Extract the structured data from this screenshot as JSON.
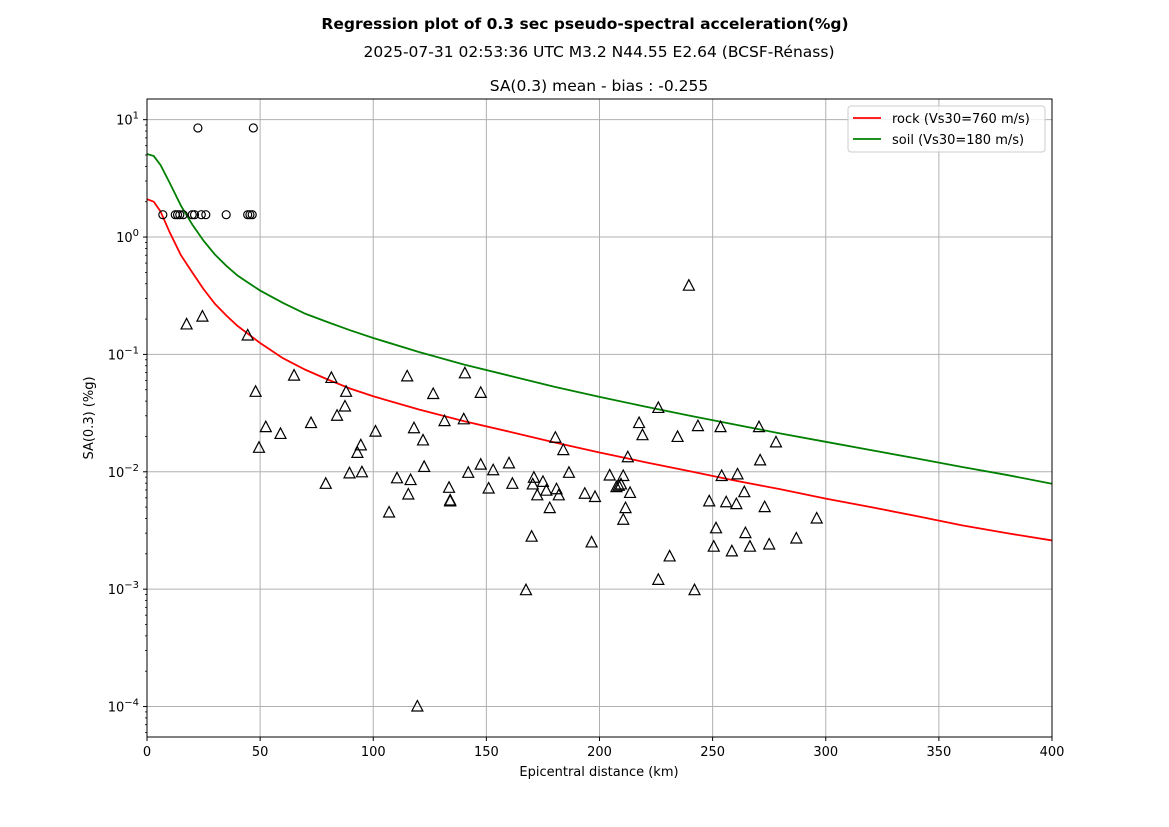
{
  "chart_data": {
    "type": "scatter",
    "title": "Regression plot of 0.3 sec pseudo-spectral acceleration(%g)",
    "subtitle": "2025-07-31 02:53:36 UTC M3.2 N44.55 E2.64 (BCSF-Rénass)",
    "panel_title": "SA(0.3) mean - bias : -0.255",
    "xlabel": "Epicentral distance (km)",
    "ylabel": "SA(0.3) (%g)",
    "xlim": [
      0,
      400
    ],
    "ylim": [
      5.5e-05,
      15
    ],
    "yscale": "log",
    "grid": true,
    "legend_position": "top-right",
    "x_ticks": [
      0,
      50,
      100,
      150,
      200,
      250,
      300,
      350,
      400
    ],
    "y_tick_labels": [
      {
        "value": 0.0001,
        "base": "10",
        "exp": "−4"
      },
      {
        "value": 0.001,
        "base": "10",
        "exp": "−3"
      },
      {
        "value": 0.01,
        "base": "10",
        "exp": "−2"
      },
      {
        "value": 0.1,
        "base": "10",
        "exp": "−1"
      },
      {
        "value": 1,
        "base": "10",
        "exp": "0"
      },
      {
        "value": 10,
        "base": "10",
        "exp": "1"
      }
    ],
    "lines": [
      {
        "name": "rock (Vs30=760 m/s)",
        "color": "#ff0000",
        "points": [
          [
            0,
            2.1
          ],
          [
            3,
            2.0
          ],
          [
            6,
            1.65
          ],
          [
            10,
            1.1
          ],
          [
            15,
            0.7
          ],
          [
            20,
            0.5
          ],
          [
            25,
            0.36
          ],
          [
            30,
            0.27
          ],
          [
            35,
            0.215
          ],
          [
            40,
            0.175
          ],
          [
            45,
            0.148
          ],
          [
            50,
            0.125
          ],
          [
            60,
            0.093
          ],
          [
            70,
            0.074
          ],
          [
            80,
            0.061
          ],
          [
            90,
            0.051
          ],
          [
            100,
            0.044
          ],
          [
            120,
            0.034
          ],
          [
            140,
            0.027
          ],
          [
            160,
            0.022
          ],
          [
            180,
            0.0178
          ],
          [
            200,
            0.0146
          ],
          [
            220,
            0.0121
          ],
          [
            240,
            0.0101
          ],
          [
            260,
            0.0084
          ],
          [
            280,
            0.0071
          ],
          [
            300,
            0.0059
          ],
          [
            320,
            0.005
          ],
          [
            340,
            0.0042
          ],
          [
            360,
            0.0035
          ],
          [
            380,
            0.003
          ],
          [
            400,
            0.0026
          ]
        ]
      },
      {
        "name": "soil (Vs30=180 m/s)",
        "color": "#008000",
        "points": [
          [
            0,
            5.1
          ],
          [
            3,
            4.9
          ],
          [
            6,
            4.1
          ],
          [
            10,
            2.9
          ],
          [
            15,
            1.85
          ],
          [
            20,
            1.28
          ],
          [
            25,
            0.93
          ],
          [
            30,
            0.71
          ],
          [
            35,
            0.57
          ],
          [
            40,
            0.47
          ],
          [
            45,
            0.405
          ],
          [
            50,
            0.35
          ],
          [
            60,
            0.275
          ],
          [
            70,
            0.222
          ],
          [
            80,
            0.188
          ],
          [
            90,
            0.16
          ],
          [
            100,
            0.138
          ],
          [
            120,
            0.105
          ],
          [
            140,
            0.082
          ],
          [
            160,
            0.066
          ],
          [
            180,
            0.053
          ],
          [
            200,
            0.0435
          ],
          [
            220,
            0.036
          ],
          [
            240,
            0.03
          ],
          [
            260,
            0.0252
          ],
          [
            280,
            0.0212
          ],
          [
            300,
            0.018
          ],
          [
            320,
            0.0153
          ],
          [
            340,
            0.013
          ],
          [
            360,
            0.011
          ],
          [
            380,
            0.0094
          ],
          [
            400,
            0.0079
          ]
        ]
      }
    ],
    "circle_points": [
      [
        7,
        1.55
      ],
      [
        12.5,
        1.55
      ],
      [
        13.5,
        1.55
      ],
      [
        14.5,
        1.55
      ],
      [
        16,
        1.55
      ],
      [
        20,
        1.55
      ],
      [
        21,
        1.55
      ],
      [
        24,
        1.55
      ],
      [
        26,
        1.55
      ],
      [
        35,
        1.55
      ],
      [
        44.5,
        1.55
      ],
      [
        45.5,
        1.55
      ],
      [
        46.5,
        1.55
      ],
      [
        22.5,
        8.5
      ],
      [
        47,
        8.5
      ]
    ],
    "triangle_points": [
      [
        17.5,
        0.18
      ],
      [
        24.5,
        0.21
      ],
      [
        44.5,
        0.145
      ],
      [
        48,
        0.048
      ],
      [
        49.5,
        0.016
      ],
      [
        52.5,
        0.024
      ],
      [
        59,
        0.021
      ],
      [
        65,
        0.066
      ],
      [
        72.5,
        0.026
      ],
      [
        79,
        0.0079
      ],
      [
        81.5,
        0.063
      ],
      [
        84,
        0.03
      ],
      [
        87.5,
        0.036
      ],
      [
        88,
        0.048
      ],
      [
        89.5,
        0.0097
      ],
      [
        93,
        0.0145
      ],
      [
        94.5,
        0.0168
      ],
      [
        95,
        0.0099
      ],
      [
        101,
        0.022
      ],
      [
        107,
        0.0045
      ],
      [
        110.5,
        0.0088
      ],
      [
        115,
        0.065
      ],
      [
        115.5,
        0.0064
      ],
      [
        116.5,
        0.0085
      ],
      [
        118,
        0.0235
      ],
      [
        119.5,
        0.0001
      ],
      [
        122,
        0.0185
      ],
      [
        122.5,
        0.011
      ],
      [
        126.5,
        0.046
      ],
      [
        131.5,
        0.027
      ],
      [
        133.5,
        0.0073
      ],
      [
        134,
        0.0057
      ],
      [
        134,
        0.0056
      ],
      [
        140,
        0.028
      ],
      [
        140.5,
        0.069
      ],
      [
        142,
        0.0098
      ],
      [
        147.5,
        0.047
      ],
      [
        147.5,
        0.0115
      ],
      [
        151,
        0.0072
      ],
      [
        153,
        0.0103
      ],
      [
        160,
        0.0118
      ],
      [
        161.5,
        0.0079
      ],
      [
        167.5,
        0.00098
      ],
      [
        170,
        0.0028
      ],
      [
        170.5,
        0.0078
      ],
      [
        171,
        0.0089
      ],
      [
        172.5,
        0.0063
      ],
      [
        175,
        0.0082
      ],
      [
        176.5,
        0.0069
      ],
      [
        178,
        0.0049
      ],
      [
        180.5,
        0.0195
      ],
      [
        181,
        0.0071
      ],
      [
        182,
        0.0063
      ],
      [
        184,
        0.0153
      ],
      [
        186.5,
        0.0098
      ],
      [
        193.5,
        0.0065
      ],
      [
        196.5,
        0.0025
      ],
      [
        198,
        0.0061
      ],
      [
        204.5,
        0.0093
      ],
      [
        207.5,
        0.0074
      ],
      [
        208.5,
        0.0076
      ],
      [
        209.5,
        0.0078
      ],
      [
        210.5,
        0.0039
      ],
      [
        210.5,
        0.0092
      ],
      [
        211.5,
        0.0049
      ],
      [
        212.5,
        0.0133
      ],
      [
        213.5,
        0.0066
      ],
      [
        217.5,
        0.026
      ],
      [
        219,
        0.0205
      ],
      [
        226,
        0.0012
      ],
      [
        226,
        0.035
      ],
      [
        231,
        0.0019
      ],
      [
        234.5,
        0.0198
      ],
      [
        239.5,
        0.385
      ],
      [
        242,
        0.00098
      ],
      [
        243.5,
        0.0245
      ],
      [
        248.5,
        0.0056
      ],
      [
        250.5,
        0.0023
      ],
      [
        251.5,
        0.0033
      ],
      [
        253.5,
        0.024
      ],
      [
        254,
        0.0092
      ],
      [
        256,
        0.0055
      ],
      [
        258.5,
        0.0021
      ],
      [
        260.5,
        0.0053
      ],
      [
        261,
        0.0095
      ],
      [
        264,
        0.0067
      ],
      [
        264.5,
        0.003
      ],
      [
        266.5,
        0.0023
      ],
      [
        270.5,
        0.024
      ],
      [
        271,
        0.0125
      ],
      [
        273,
        0.005
      ],
      [
        275,
        0.0024
      ],
      [
        278,
        0.0178
      ],
      [
        287,
        0.0027
      ],
      [
        296,
        0.004
      ]
    ]
  }
}
